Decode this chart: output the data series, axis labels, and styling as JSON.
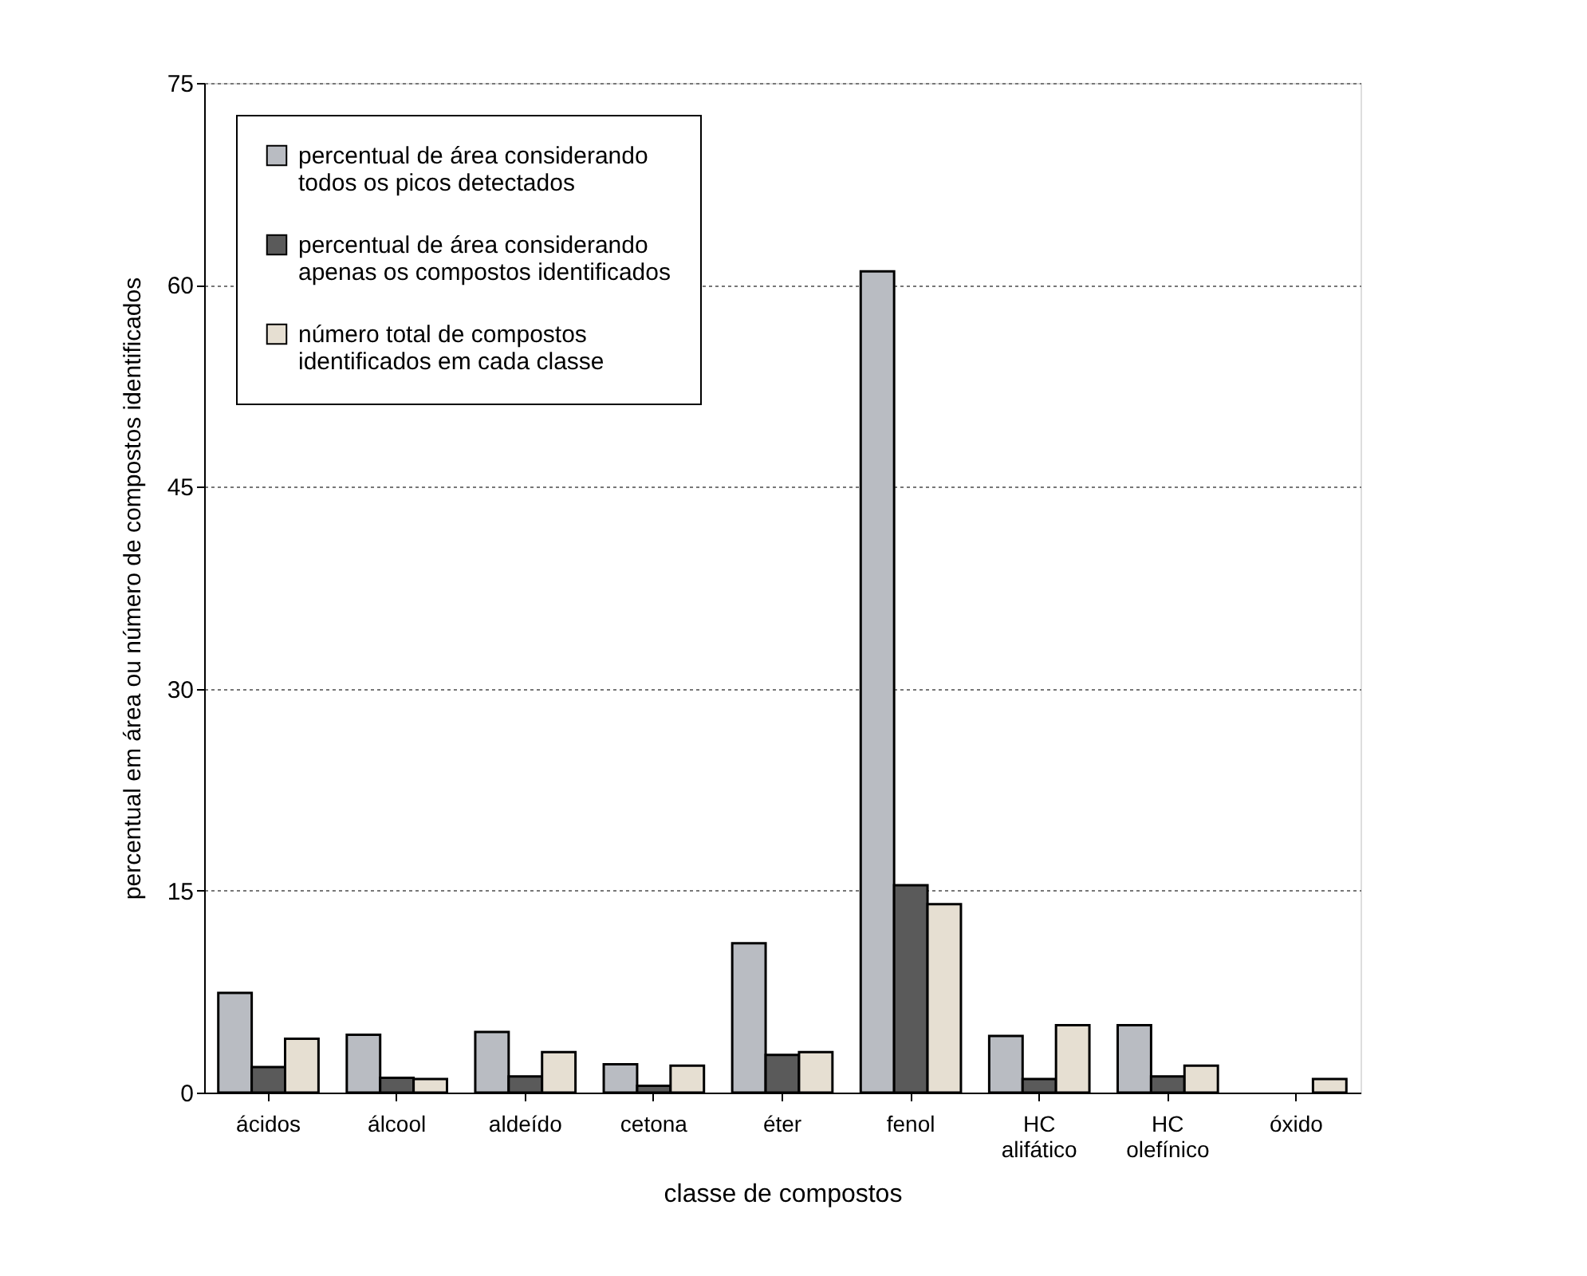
{
  "chart_data": {
    "type": "bar",
    "xlabel": "classe de compostos",
    "ylabel": "percentual em área ou número de compostos identificados",
    "categories": [
      "ácidos",
      "álcool",
      "aldeído",
      "cetona",
      "éter",
      "fenol",
      "HC alifático",
      "HC olefínico",
      "óxido"
    ],
    "series": [
      {
        "name": "percentual de área considerando todos os picos detectados",
        "color": "#b9bcc2",
        "values": [
          7.4,
          4.3,
          4.5,
          2.1,
          11.1,
          61.0,
          4.2,
          5.0,
          0
        ]
      },
      {
        "name": "percentual de área considerando apenas os compostos identificados",
        "color": "#5a5a5a",
        "values": [
          1.9,
          1.1,
          1.2,
          0.5,
          2.8,
          15.4,
          1.0,
          1.2,
          0
        ]
      },
      {
        "name": "número total de compostos identificados em cada classe",
        "color": "#e6dfd2",
        "values": [
          4,
          1,
          3,
          2,
          3,
          14,
          5,
          2,
          1
        ]
      }
    ],
    "ylim": [
      0,
      75
    ],
    "yticks": [
      0,
      15,
      30,
      45,
      60,
      75
    ],
    "grid": "y",
    "legend": "top left"
  }
}
